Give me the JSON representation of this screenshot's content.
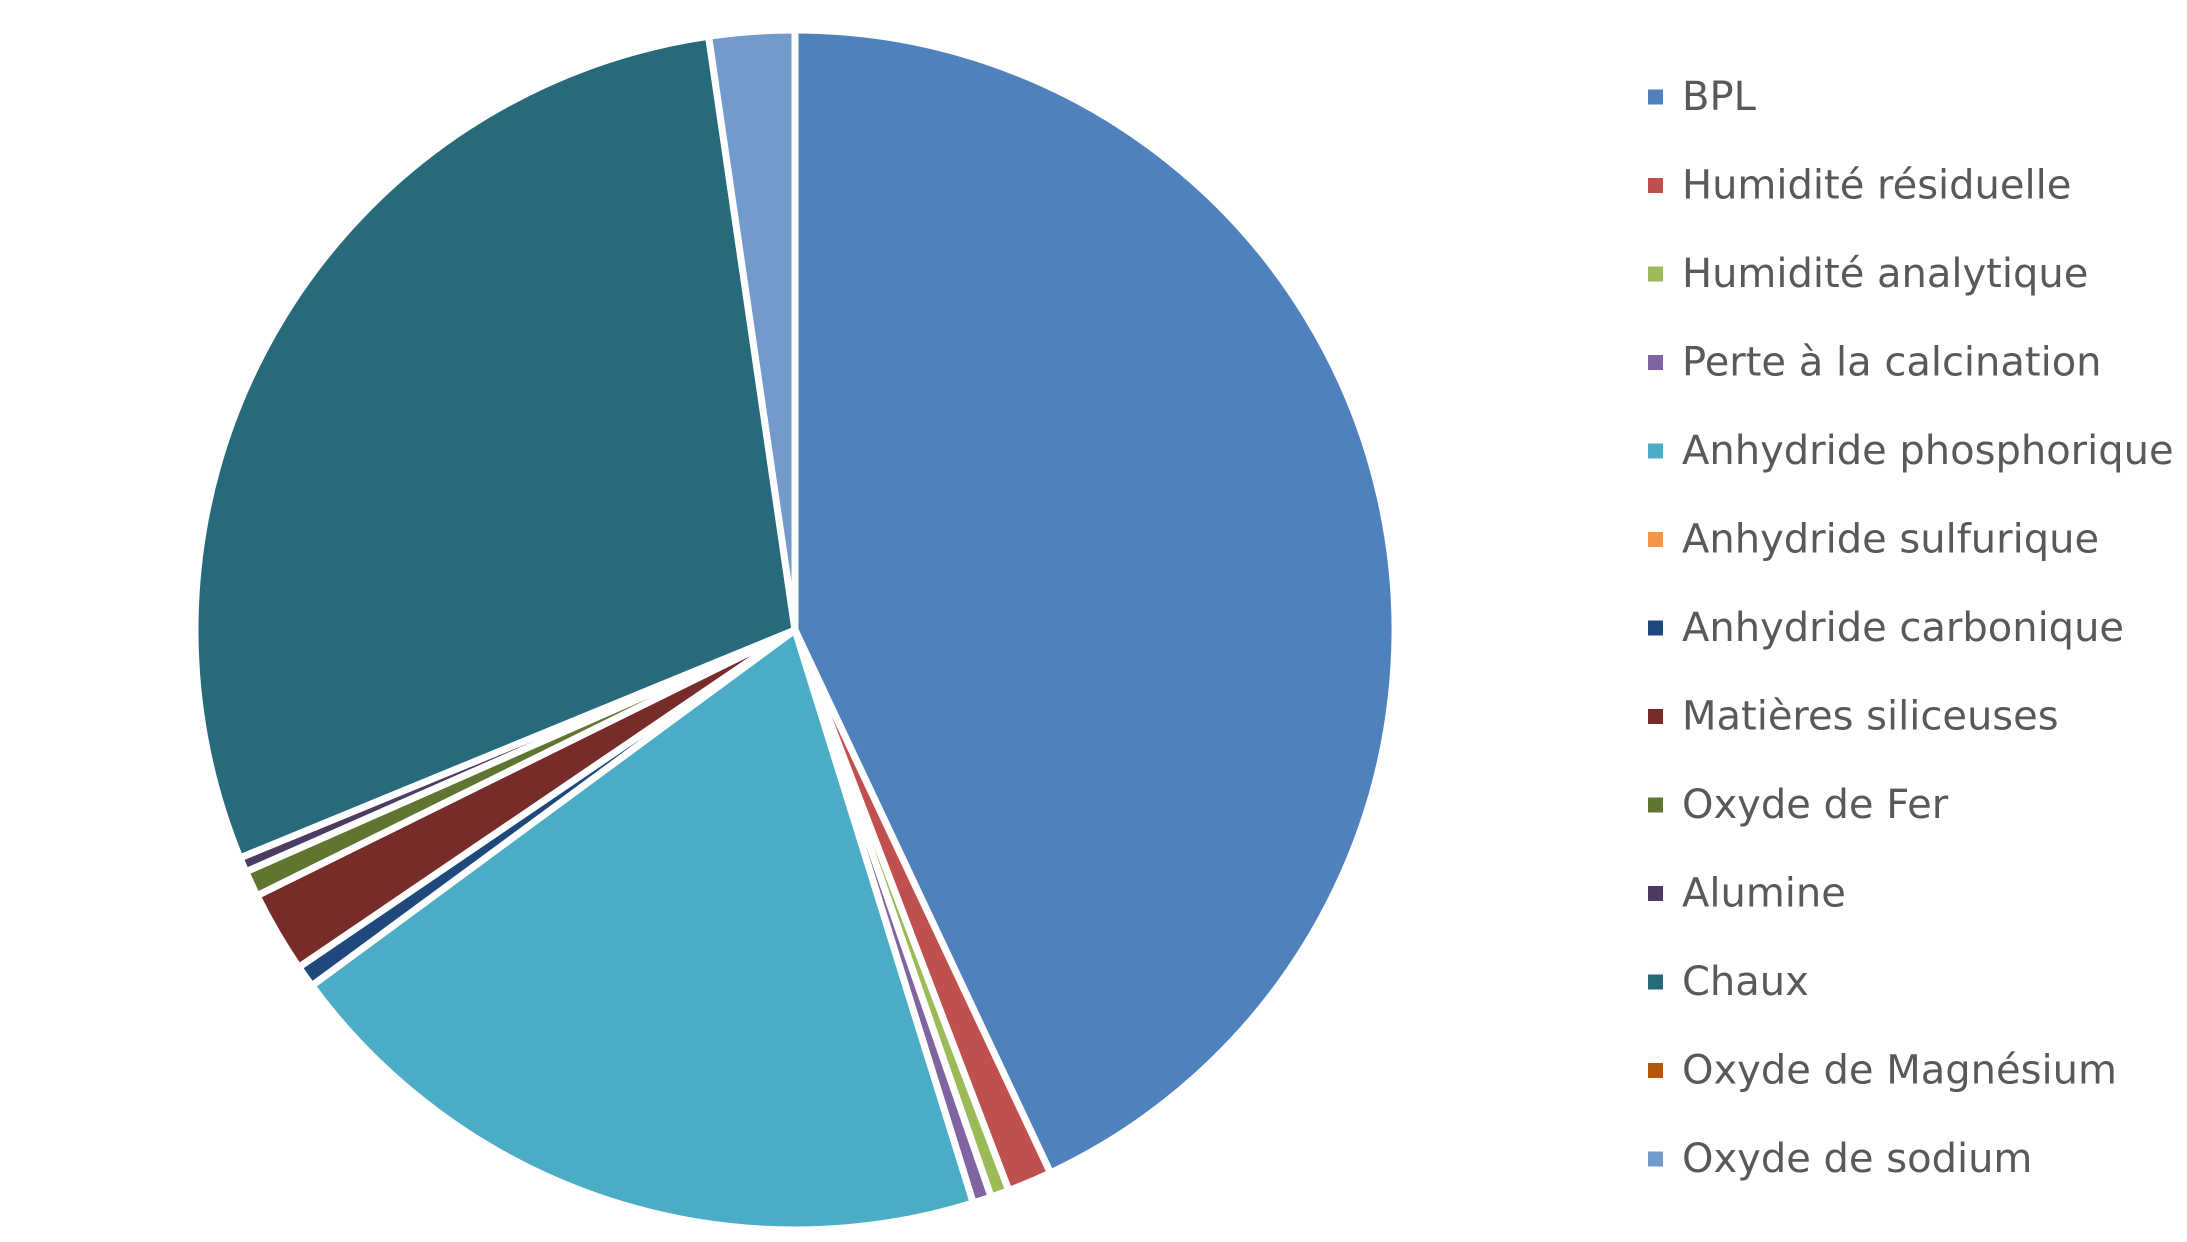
{
  "chart_data": {
    "type": "pie",
    "title": "",
    "legend_position": "right",
    "slices": [
      {
        "label": "BPL",
        "value": 43.0,
        "color": "#4F81BD"
      },
      {
        "label": "Humidité résiduelle",
        "value": 1.2,
        "color": "#C0504D"
      },
      {
        "label": "Humidité analytique",
        "value": 0.5,
        "color": "#9BBB59"
      },
      {
        "label": "Perte à la calcination",
        "value": 0.5,
        "color": "#8064A2"
      },
      {
        "label": "Anhydride phosphorique",
        "value": 19.7,
        "color": "#4BACC6"
      },
      {
        "label": "Anhydride sulfurique",
        "value": 0.0,
        "color": "#F79646"
      },
      {
        "label": "Anhydride carbonique",
        "value": 0.6,
        "color": "#1F497D"
      },
      {
        "label": "Matières siliceuses",
        "value": 2.2,
        "color": "#772C2A"
      },
      {
        "label": "Oxyde de Fer",
        "value": 0.7,
        "color": "#5F7530"
      },
      {
        "label": "Alumine",
        "value": 0.4,
        "color": "#4D3B62"
      },
      {
        "label": "Chaux",
        "value": 28.9,
        "color": "#276A7C"
      },
      {
        "label": "Oxyde de Magnésium",
        "value": 0.0,
        "color": "#B65708"
      },
      {
        "label": "Oxyde de sodium",
        "value": 2.3,
        "color": "#729ACA"
      }
    ]
  }
}
